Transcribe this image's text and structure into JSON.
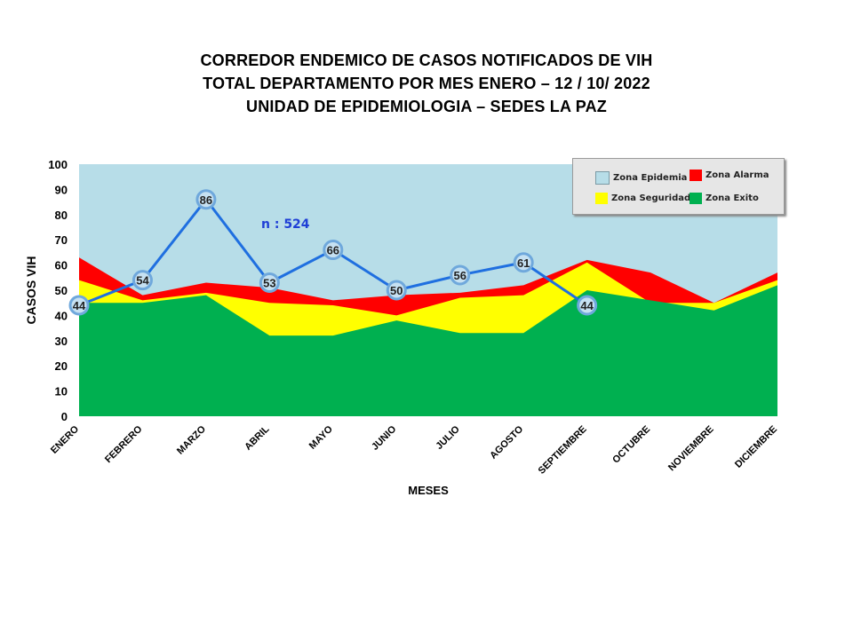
{
  "title_lines": [
    "CORREDOR ENDEMICO  DE CASOS NOTIFICADOS  DE VIH",
    "TOTAL DEPARTAMENTO  POR MES ENERO  – 12 / 10/ 2022",
    "UNIDAD  DE EPIDEMIOLOGIA  – SEDES LA PAZ"
  ],
  "annotation": "n : 524",
  "legend": {
    "epidemia": "Zona Epidemia",
    "alarma": "Zona Alarma",
    "seguridad": "Zona Seguridad",
    "exito": "Zona Exito"
  },
  "colors": {
    "epidemia": "#b7dde8",
    "alarma": "#ff0000",
    "seguridad": "#ffff00",
    "exito": "#00b050",
    "line": "#1f6fe0",
    "marker_ring": "#6fa8dc",
    "marker_fill": "#c6e1f2"
  },
  "chart_data": {
    "type": "area",
    "xlabel": "MESES",
    "ylabel": "CASOS VIH",
    "ylim": [
      0,
      100
    ],
    "yticks": [
      0,
      10,
      20,
      30,
      40,
      50,
      60,
      70,
      80,
      90,
      100
    ],
    "categories": [
      "ENERO",
      "FEBRERO",
      "MARZO",
      "ABRIL",
      "MAYO",
      "JUNIO",
      "JULIO",
      "AGOSTO",
      "SEPTIEMBRE",
      "OCTUBRE",
      "NOVIEMBRE",
      "DICIEMBRE"
    ],
    "series": [
      {
        "name": "Zona Exito",
        "values": [
          45,
          45,
          48,
          32,
          32,
          38,
          33,
          33,
          50,
          46,
          42,
          52
        ]
      },
      {
        "name": "Zona Seguridad",
        "values": [
          54,
          46,
          49,
          45,
          44,
          40,
          47,
          48,
          61,
          45,
          45,
          54
        ]
      },
      {
        "name": "Zona Alarma",
        "values": [
          63,
          48,
          53,
          51,
          46,
          48,
          49,
          52,
          62,
          57,
          45,
          57
        ]
      },
      {
        "name": "Zona Epidemia",
        "values": [
          100,
          100,
          100,
          100,
          100,
          100,
          100,
          100,
          100,
          100,
          100,
          100
        ]
      },
      {
        "values": [
          44,
          54,
          86,
          53,
          66,
          50,
          56,
          61,
          44,
          null,
          null,
          null
        ]
      }
    ],
    "grid": false,
    "legend_position": "top-right"
  }
}
